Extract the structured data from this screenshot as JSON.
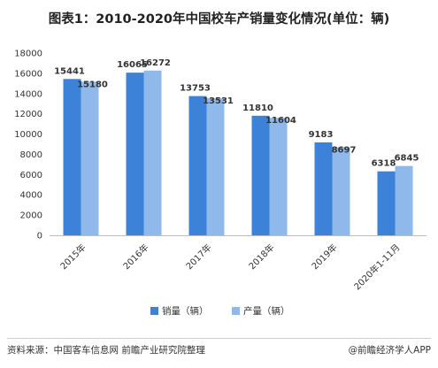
{
  "chart_data": {
    "type": "bar",
    "title": "图表1：2010-2020年中国校车产销量变化情况(单位：辆)",
    "categories": [
      "2015年",
      "2016年",
      "2017年",
      "2018年",
      "2019年",
      "2020年1-11月"
    ],
    "series": [
      {
        "name": "销量（辆）",
        "values": [
          15441,
          16065,
          13753,
          11810,
          9183,
          6318
        ],
        "color": "#3b82d8"
      },
      {
        "name": "产量（辆）",
        "values": [
          15180,
          16272,
          13531,
          11604,
          8697,
          6845
        ],
        "color": "#8fb9ea"
      }
    ],
    "ylim": [
      0,
      18000
    ],
    "yticks": [
      0,
      2000,
      4000,
      6000,
      8000,
      10000,
      12000,
      14000,
      16000,
      18000
    ],
    "grid": false,
    "legend": "bottom-center",
    "xlabel": "",
    "ylabel": ""
  },
  "footer": {
    "source": "资料来源：中国客车信息网 前瞻产业研究院整理",
    "brand": "@前瞻经济学人APP"
  }
}
